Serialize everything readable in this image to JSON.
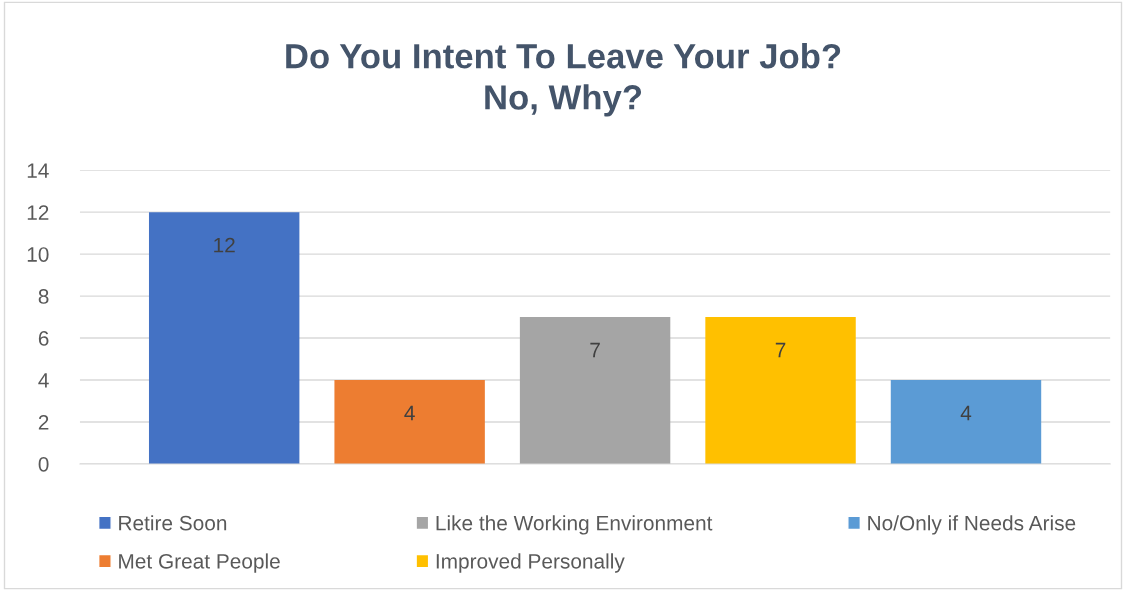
{
  "chart_data": {
    "type": "bar",
    "title": "Do You Intent To Leave Your Job?\nNo, Why?",
    "categories": [
      null
    ],
    "series": [
      {
        "name": "Retire Soon",
        "color": "#4472c4",
        "values": [
          12
        ]
      },
      {
        "name": "Met Great People",
        "color": "#ed7d31",
        "values": [
          4
        ]
      },
      {
        "name": "Like the Working Environment",
        "color": "#a5a5a5",
        "values": [
          7
        ]
      },
      {
        "name": "Improved Personally",
        "color": "#ffc000",
        "values": [
          7
        ]
      },
      {
        "name": "No/Only if Needs Arise",
        "color": "#5b9bd5",
        "values": [
          4
        ]
      }
    ],
    "ylim": [
      0,
      14
    ],
    "yticks": [
      0,
      2,
      4,
      6,
      8,
      10,
      12,
      14
    ],
    "grid": "y",
    "legend": "bottom",
    "data_labels": true
  }
}
